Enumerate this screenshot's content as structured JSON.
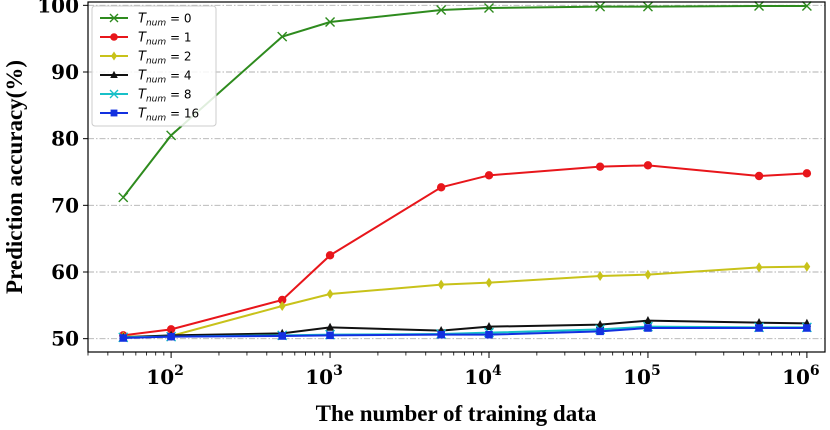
{
  "chart_data": {
    "type": "line",
    "xlabel": "The number of training data",
    "ylabel": "Prediction accuracy(%)",
    "xscale": "log",
    "xlim": [
      30,
      1300000
    ],
    "ylim": [
      48,
      100.5
    ],
    "x": [
      50,
      100,
      500,
      1000,
      5000,
      10000,
      50000,
      100000,
      500000,
      1000000
    ],
    "x_ticks": [
      {
        "value": 100,
        "base": "10",
        "exp": "2"
      },
      {
        "value": 1000,
        "base": "10",
        "exp": "3"
      },
      {
        "value": 10000,
        "base": "10",
        "exp": "4"
      },
      {
        "value": 100000,
        "base": "10",
        "exp": "5"
      },
      {
        "value": 1000000,
        "base": "10",
        "exp": "6"
      }
    ],
    "y_ticks": [
      50,
      60,
      70,
      80,
      90,
      100
    ],
    "grid": "horizontal dash-dot",
    "legend_position": "top-left",
    "legend_symbol": "T",
    "legend_subscript": "num",
    "series": [
      {
        "label_value": "0",
        "color": "#2e8b1e",
        "marker": "x",
        "values": [
          71.2,
          80.5,
          95.3,
          97.5,
          99.3,
          99.6,
          99.8,
          99.8,
          99.9,
          99.9
        ]
      },
      {
        "label_value": "1",
        "color": "#e8161b",
        "marker": "circle",
        "values": [
          50.5,
          51.4,
          55.8,
          62.5,
          72.7,
          74.5,
          75.8,
          76.0,
          74.4,
          74.8
        ]
      },
      {
        "label_value": "2",
        "color": "#c8c21a",
        "marker": "diamond",
        "values": [
          50.3,
          50.4,
          54.9,
          56.7,
          58.1,
          58.4,
          59.4,
          59.6,
          60.7,
          60.8
        ]
      },
      {
        "label_value": "4",
        "color": "#111111",
        "marker": "triangle",
        "values": [
          50.2,
          50.5,
          50.8,
          51.7,
          51.2,
          51.8,
          52.1,
          52.7,
          52.4,
          52.3
        ]
      },
      {
        "label_value": "8",
        "color": "#17c0c8",
        "marker": "x",
        "values": [
          50.2,
          50.3,
          50.5,
          50.6,
          50.7,
          50.9,
          51.4,
          51.8,
          51.7,
          51.7
        ]
      },
      {
        "label_value": "16",
        "color": "#1230e0",
        "marker": "square",
        "values": [
          50.1,
          50.3,
          50.4,
          50.5,
          50.6,
          50.6,
          51.1,
          51.6,
          51.6,
          51.6
        ]
      }
    ]
  }
}
